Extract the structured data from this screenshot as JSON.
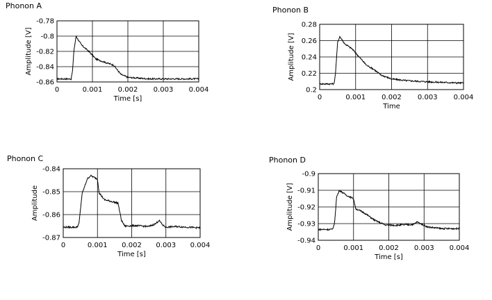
{
  "chart_data": [
    {
      "type": "line",
      "title": "Phonon A",
      "xlabel": "Time [s]",
      "ylabel": "Amplitude [V]",
      "xlim": [
        0,
        0.004
      ],
      "ylim": [
        -0.86,
        -0.78
      ],
      "xticks": [
        0,
        0.001,
        0.002,
        0.003,
        0.004
      ],
      "xtick_labels": [
        "0",
        "0.001",
        "0.002",
        "0.003",
        "0.004"
      ],
      "yticks": [
        -0.78,
        -0.8,
        -0.82,
        -0.84,
        -0.86
      ],
      "ytick_labels": [
        "-0.78",
        "-0.8",
        "-0.82",
        "-0.84",
        "-0.86"
      ],
      "grid": true,
      "series": [
        {
          "x": [
            0,
            0.0004,
            0.00044,
            0.00048,
            0.00054,
            0.0006,
            0.0007,
            0.0009,
            0.0011,
            0.0014,
            0.0016,
            0.0018,
            0.002,
            0.0023,
            0.0026,
            0.003,
            0.0035,
            0.004
          ],
          "y": [
            -0.856,
            -0.856,
            -0.845,
            -0.818,
            -0.8,
            -0.805,
            -0.812,
            -0.82,
            -0.83,
            -0.835,
            -0.838,
            -0.85,
            -0.854,
            -0.855,
            -0.856,
            -0.856,
            -0.856,
            -0.856
          ]
        }
      ]
    },
    {
      "type": "line",
      "title": "Phonon B",
      "xlabel": "Time",
      "ylabel": "Amplitude [V]",
      "xlim": [
        0,
        0.004
      ],
      "ylim": [
        0.2,
        0.28
      ],
      "xticks": [
        0,
        0.001,
        0.002,
        0.003,
        0.004
      ],
      "xtick_labels": [
        "0",
        "0.001",
        "0.002",
        "0.003",
        "0.004"
      ],
      "yticks": [
        0.28,
        0.26,
        0.24,
        0.22,
        0.2
      ],
      "ytick_labels": [
        "0.28",
        "0.26",
        "0.24",
        "0.22",
        "0.2"
      ],
      "grid": true,
      "series": [
        {
          "x": [
            0,
            0.0004,
            0.00044,
            0.0005,
            0.00056,
            0.0007,
            0.0009,
            0.0011,
            0.0013,
            0.0015,
            0.0017,
            0.002,
            0.0024,
            0.0028,
            0.0033,
            0.004
          ],
          "y": [
            0.207,
            0.207,
            0.22,
            0.258,
            0.265,
            0.256,
            0.25,
            0.24,
            0.23,
            0.225,
            0.218,
            0.213,
            0.211,
            0.21,
            0.209,
            0.208
          ]
        }
      ]
    },
    {
      "type": "line",
      "title": "Phonon C",
      "xlabel": "Time [s]",
      "ylabel": "Amplitude",
      "xlim": [
        0,
        0.004
      ],
      "ylim": [
        -0.87,
        -0.84
      ],
      "xticks": [
        0,
        0.001,
        0.002,
        0.003,
        0.004
      ],
      "xtick_labels": [
        "0",
        "0.001",
        "0.002",
        "0.003",
        "0.004"
      ],
      "yticks": [
        -0.84,
        -0.85,
        -0.86,
        -0.87
      ],
      "ytick_labels": [
        "-0.84",
        "-0.85",
        "-0.86",
        "-0.87"
      ],
      "grid": true,
      "series": [
        {
          "x": [
            0,
            0.0004,
            0.00046,
            0.00055,
            0.0007,
            0.0008,
            0.001,
            0.00105,
            0.0012,
            0.0016,
            0.0017,
            0.0018,
            0.0021,
            0.0025,
            0.0027,
            0.0028,
            0.0029,
            0.003,
            0.0033,
            0.004
          ],
          "y": [
            -0.8655,
            -0.8655,
            -0.864,
            -0.851,
            -0.8445,
            -0.843,
            -0.8445,
            -0.8505,
            -0.8535,
            -0.855,
            -0.8625,
            -0.865,
            -0.8648,
            -0.8652,
            -0.864,
            -0.8625,
            -0.8645,
            -0.8655,
            -0.8652,
            -0.8658
          ]
        }
      ]
    },
    {
      "type": "line",
      "title": "Phonon D",
      "xlabel": "Time [s]",
      "ylabel": "Amplitude [V]",
      "xlim": [
        0,
        0.004
      ],
      "ylim": [
        -0.94,
        -0.9
      ],
      "xticks": [
        0,
        0.001,
        0.002,
        0.003,
        0.004
      ],
      "xtick_labels": [
        "0",
        "0.001",
        "0.002",
        "0.003",
        "0.004"
      ],
      "yticks": [
        -0.9,
        -0.91,
        -0.92,
        -0.93,
        -0.94
      ],
      "ytick_labels": [
        "-0.9",
        "-0.91",
        "-0.92",
        "-0.93",
        "-0.94"
      ],
      "grid": true,
      "series": [
        {
          "x": [
            0,
            0.0004,
            0.00046,
            0.00052,
            0.0006,
            0.0008,
            0.001,
            0.00106,
            0.0013,
            0.0016,
            0.0019,
            0.0022,
            0.0027,
            0.0028,
            0.0031,
            0.0035,
            0.004
          ],
          "y": [
            -0.9335,
            -0.9335,
            -0.93,
            -0.914,
            -0.91,
            -0.913,
            -0.915,
            -0.921,
            -0.9235,
            -0.928,
            -0.9308,
            -0.931,
            -0.9305,
            -0.929,
            -0.932,
            -0.933,
            -0.933
          ]
        }
      ]
    }
  ]
}
